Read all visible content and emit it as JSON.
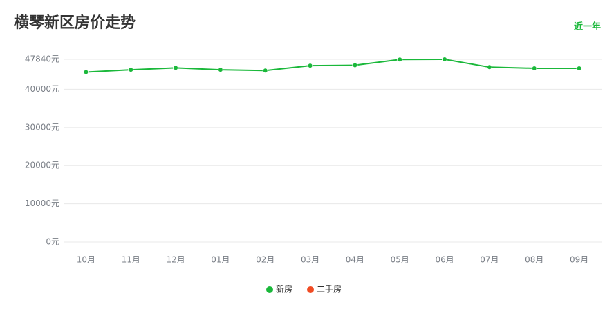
{
  "chart_data": {
    "type": "line",
    "title": "横琴新区房价走势",
    "range_link": "近一年",
    "categories": [
      "10月",
      "11月",
      "12月",
      "01月",
      "02月",
      "03月",
      "04月",
      "05月",
      "06月",
      "07月",
      "08月",
      "09月"
    ],
    "series": [
      {
        "name": "新房",
        "color": "#1ab83a",
        "values": [
          44500,
          45100,
          45600,
          45100,
          44900,
          46200,
          46300,
          47800,
          47840,
          45800,
          45500,
          45500
        ]
      },
      {
        "name": "二手房",
        "color": "#f04b23",
        "values": [
          null,
          null,
          null,
          null,
          null,
          null,
          null,
          null,
          null,
          null,
          null,
          null
        ]
      }
    ],
    "ylim": [
      0,
      47840
    ],
    "yticks": [
      {
        "value": 0,
        "label": "0元"
      },
      {
        "value": 10000,
        "label": "10000元"
      },
      {
        "value": 20000,
        "label": "20000元"
      },
      {
        "value": 30000,
        "label": "30000元"
      },
      {
        "value": 40000,
        "label": "40000元"
      },
      {
        "value": 47840,
        "label": "47840元"
      }
    ],
    "grid": true
  }
}
